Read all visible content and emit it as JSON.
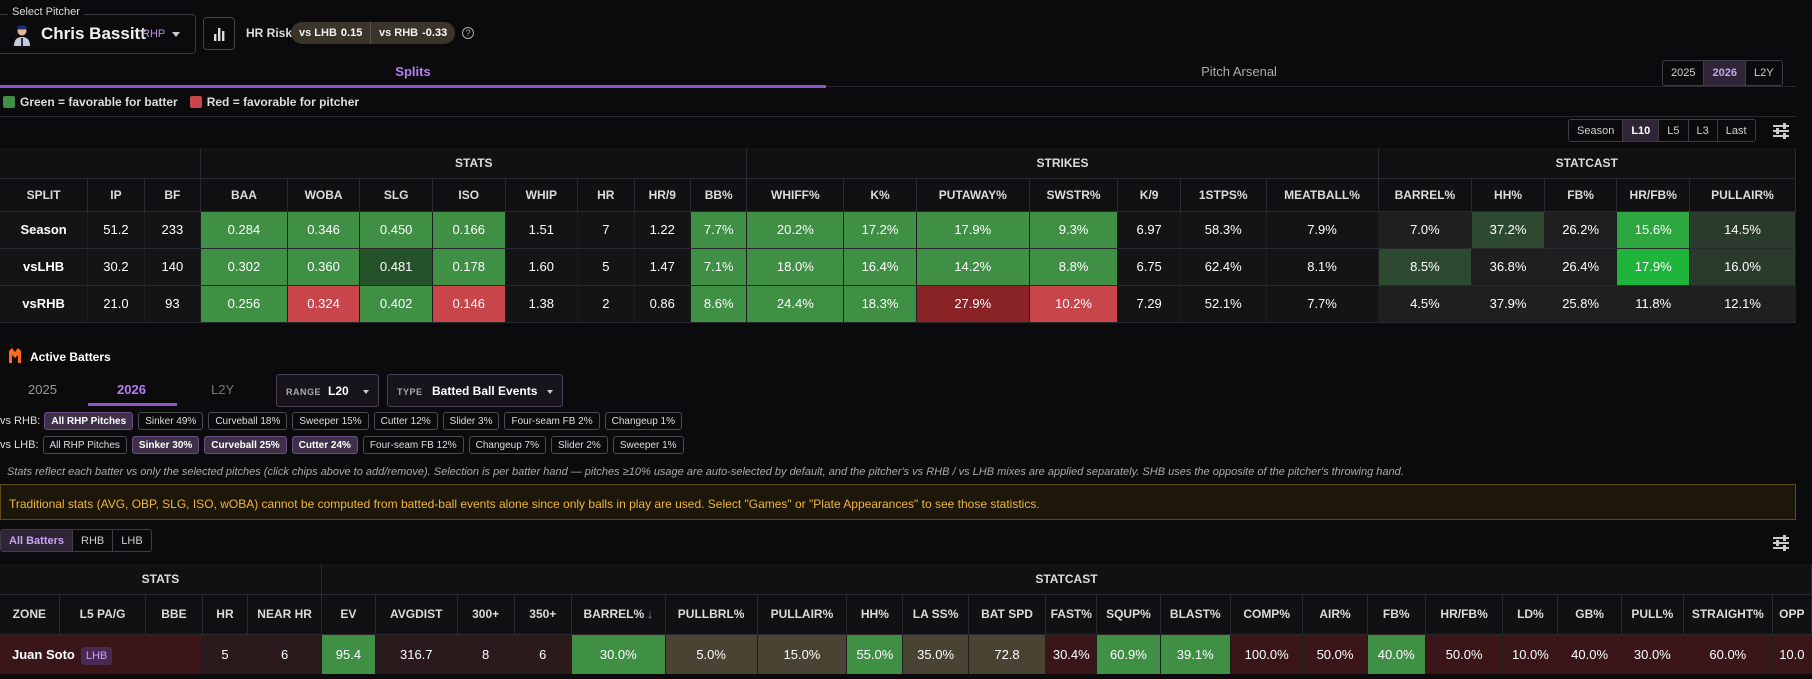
{
  "pitcher": {
    "legend": "Select Pitcher",
    "name": "Chris Bassitt",
    "hand": "RHP"
  },
  "hr_risk": {
    "label": "HR Risk",
    "lhb_label": "vs LHB",
    "lhb_value": "0.15",
    "rhb_label": "vs RHB",
    "rhb_value": "-0.33",
    "help": "?"
  },
  "main_tabs": [
    "Splits",
    "Pitch Arsenal"
  ],
  "season_buttons": [
    "2025",
    "2026",
    "L2Y"
  ],
  "legend": {
    "green": "Green = favorable for batter",
    "red": "Red = favorable for pitcher"
  },
  "range_buttons": [
    "Season",
    "L10",
    "L5",
    "L3",
    "Last"
  ],
  "split_table": {
    "groups": [
      "STATS",
      "STRIKES",
      "STATCAST"
    ],
    "columns": [
      "SPLIT",
      "IP",
      "BF",
      "BAA",
      "WOBA",
      "SLG",
      "ISO",
      "WHIP",
      "HR",
      "HR/9",
      "BB%",
      "WHIFF%",
      "K%",
      "PUTAWAY%",
      "SWSTR%",
      "K/9",
      "1STPS%",
      "MEATBALL%",
      "BARREL%",
      "HH%",
      "FB%",
      "HR/FB%",
      "PULLAIR%"
    ],
    "rows": [
      [
        "Season",
        "51.2",
        "233",
        "0.284",
        "0.346",
        "0.450",
        "0.166",
        "1.51",
        "7",
        "1.22",
        "7.7%",
        "20.2%",
        "17.2%",
        "17.9%",
        "9.3%",
        "6.97",
        "58.3%",
        "7.9%",
        "7.0%",
        "37.2%",
        "26.2%",
        "15.6%",
        "14.5%"
      ],
      [
        "vsLHB",
        "30.2",
        "140",
        "0.302",
        "0.360",
        "0.481",
        "0.178",
        "1.60",
        "5",
        "1.47",
        "7.1%",
        "18.0%",
        "16.4%",
        "14.2%",
        "8.8%",
        "6.75",
        "62.4%",
        "8.1%",
        "8.5%",
        "36.8%",
        "26.4%",
        "17.9%",
        "16.0%"
      ],
      [
        "vsRHB",
        "21.0",
        "93",
        "0.256",
        "0.324",
        "0.402",
        "0.146",
        "1.38",
        "2",
        "0.86",
        "8.6%",
        "24.4%",
        "18.3%",
        "27.9%",
        "10.2%",
        "7.29",
        "52.1%",
        "7.7%",
        "4.5%",
        "37.9%",
        "25.8%",
        "11.8%",
        "12.1%"
      ]
    ],
    "colors": [
      [
        "",
        "",
        "",
        "#3f8f45",
        "#3f8f45",
        "#3f8f45",
        "#3f8f45",
        "",
        "",
        "",
        "#3f8f45",
        "#3f8f45",
        "#3f8f45",
        "#3f8f45",
        "#3f8f45",
        "",
        "",
        "",
        "#1f1f22",
        "#2d4a31",
        "#1f1f22",
        "#2ea640",
        "#2a3b2d"
      ],
      [
        "",
        "",
        "",
        "#3f8f45",
        "#3f8f45",
        "#24532a",
        "#3f8f45",
        "",
        "",
        "",
        "#3f8f45",
        "#3f8f45",
        "#3f8f45",
        "#3f8f45",
        "#3f8f45",
        "",
        "",
        "",
        "#2d4a31",
        "#1f1f22",
        "#1f1f22",
        "#1fb43c",
        "#2a3b2d"
      ],
      [
        "",
        "",
        "",
        "#3f8f45",
        "#c8454a",
        "#3f8f45",
        "#c8454a",
        "",
        "",
        "",
        "#3f8f45",
        "#3f8f45",
        "#3f8f45",
        "#8a2326",
        "#c8454a",
        "",
        "",
        "",
        "#1f1f22",
        "#1f1f22",
        "#1f1f22",
        "#1f1f22",
        "#1f1f22"
      ]
    ]
  },
  "active_batters": {
    "title": "Active Batters",
    "tabs": [
      "2025",
      "2026",
      "L2Y"
    ],
    "range": {
      "key": "RANGE",
      "value": "L20"
    },
    "type": {
      "key": "TYPE",
      "value": "Batted Ball Events"
    },
    "rhb_label": "vs RHB:",
    "rhb_chips": [
      {
        "t": "All RHP Pitches",
        "on": true
      },
      {
        "t": "Sinker 49%"
      },
      {
        "t": "Curveball 18%"
      },
      {
        "t": "Sweeper 15%"
      },
      {
        "t": "Cutter 12%"
      },
      {
        "t": "Slider 3%"
      },
      {
        "t": "Four-seam FB 2%"
      },
      {
        "t": "Changeup 1%"
      }
    ],
    "lhb_label": "vs LHB:",
    "lhb_chips": [
      {
        "t": "All RHP Pitches"
      },
      {
        "t": "Sinker 30%",
        "on": true
      },
      {
        "t": "Curveball 25%",
        "on": true
      },
      {
        "t": "Cutter 24%",
        "on": true
      },
      {
        "t": "Four-seam FB 12%"
      },
      {
        "t": "Changeup 7%"
      },
      {
        "t": "Slider 2%"
      },
      {
        "t": "Sweeper 1%"
      }
    ],
    "note": "Stats reflect each batter vs only the selected pitches (click chips above to add/remove). Selection is per batter hand — pitches ≥10% usage are auto-selected by default, and the pitcher's vs RHB / vs LHB mixes are applied separately. SHB uses the opposite of the pitcher's throwing hand.",
    "warning": "Traditional stats (AVG, OBP, SLG, ISO, wOBA) cannot be computed from batted-ball events alone since only balls in play are used. Select \"Games\" or \"Plate Appearances\" to see those statistics.",
    "filters": [
      "All Batters",
      "RHB",
      "LHB"
    ]
  },
  "batter_table": {
    "groups": [
      "STATS",
      "STATCAST"
    ],
    "columns": [
      "ZONE",
      "L5 PA/G",
      "BBE",
      "HR",
      "NEAR HR",
      "EV",
      "AVGDIST",
      "300+",
      "350+",
      "BARREL%",
      "PULLBRL%",
      "PULLAIR%",
      "HH%",
      "LA SS%",
      "BAT SPD",
      "FAST%",
      "SQUP%",
      "BLAST%",
      "COMP%",
      "AIR%",
      "FB%",
      "HR/FB%",
      "LD%",
      "GB%",
      "PULL%",
      "STRAIGHT%",
      "OPP"
    ],
    "sort_arrow": "↓",
    "row": {
      "name": "Juan Soto",
      "hand": "LHB",
      "values": [
        "",
        "",
        "5",
        "6",
        "95.4",
        "316.7",
        "8",
        "6",
        "30.0%",
        "5.0%",
        "15.0%",
        "55.0%",
        "35.0%",
        "72.8",
        "30.4%",
        "60.9%",
        "39.1%",
        "100.0%",
        "50.0%",
        "40.0%",
        "50.0%",
        "10.0%",
        "40.0%",
        "30.0%",
        "60.0%",
        "10.0"
      ]
    },
    "row_colors": [
      "#3a1618",
      "#3a1618",
      "#2a1a1c",
      "#2a1a1c",
      "#3f8f45",
      "#2a1a1c",
      "#2a1a1c",
      "#2a1a1c",
      "#3f8f45",
      "#4a4232",
      "#4a4232",
      "#3f8f45",
      "#4a4232",
      "#4a4232",
      "#3a1618",
      "#3f8f45",
      "#3f8f45",
      "#3a1618",
      "#3a1618",
      "#3f8f45",
      "#3a1618",
      "#3a1618",
      "#3a1618",
      "#3a1618",
      "#3a1618",
      "#3a1618"
    ]
  },
  "colors": {
    "accent": "#a56de2",
    "green": "#3f8f45",
    "red": "#c8454a"
  }
}
